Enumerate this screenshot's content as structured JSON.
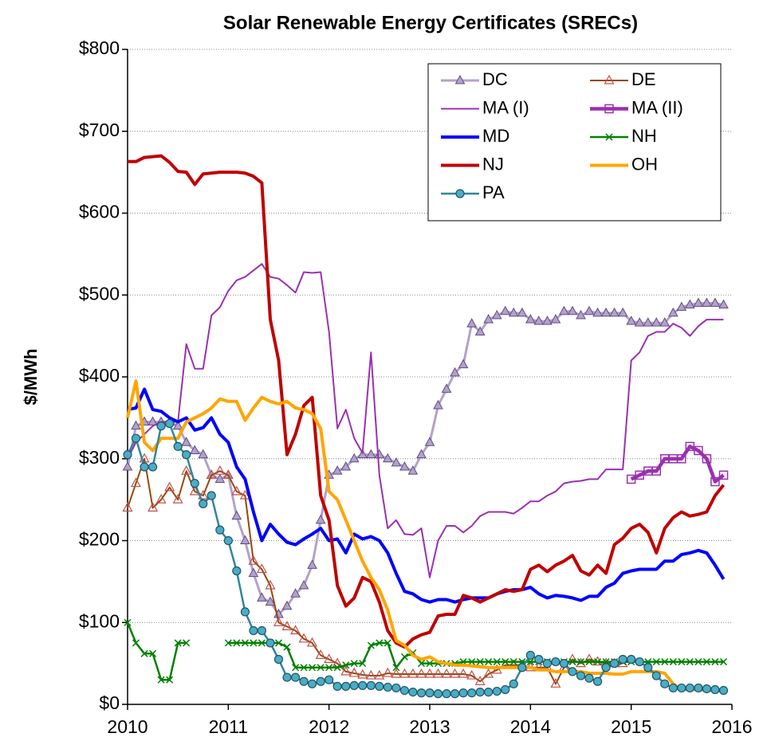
{
  "chart_data": {
    "type": "line",
    "title": "Solar Renewable Energy Certificates (SRECs)",
    "ylabel": "$/MWh",
    "x": [
      2010,
      2010.083,
      2010.167,
      2010.25,
      2010.333,
      2010.417,
      2010.5,
      2010.583,
      2010.667,
      2010.75,
      2010.833,
      2010.917,
      2011,
      2011.083,
      2011.167,
      2011.25,
      2011.333,
      2011.417,
      2011.5,
      2011.583,
      2011.667,
      2011.75,
      2011.833,
      2011.917,
      2012,
      2012.083,
      2012.167,
      2012.25,
      2012.333,
      2012.417,
      2012.5,
      2012.583,
      2012.667,
      2012.75,
      2012.833,
      2012.917,
      2013,
      2013.083,
      2013.167,
      2013.25,
      2013.333,
      2013.417,
      2013.5,
      2013.583,
      2013.667,
      2013.75,
      2013.833,
      2013.917,
      2014,
      2014.083,
      2014.167,
      2014.25,
      2014.333,
      2014.417,
      2014.5,
      2014.583,
      2014.667,
      2014.75,
      2014.833,
      2014.917,
      2015,
      2015.083,
      2015.167,
      2015.25,
      2015.333,
      2015.417,
      2015.5,
      2015.583,
      2015.667,
      2015.75,
      2015.833,
      2015.917
    ],
    "xlim": [
      2010,
      2016
    ],
    "xticks": [
      2010,
      2011,
      2012,
      2013,
      2014,
      2015,
      2016
    ],
    "ylim": [
      0,
      800
    ],
    "yticks": [
      {
        "value": 0,
        "label": "$0"
      },
      {
        "value": 100,
        "label": "$100"
      },
      {
        "value": 200,
        "label": "$200"
      },
      {
        "value": 300,
        "label": "$300"
      },
      {
        "value": 400,
        "label": "$400"
      },
      {
        "value": 500,
        "label": "$500"
      },
      {
        "value": 600,
        "label": "$600"
      },
      {
        "value": 700,
        "label": "$700"
      },
      {
        "value": 800,
        "label": "$800"
      }
    ],
    "grid": true,
    "legend": "upper right",
    "series": [
      {
        "name": "DC",
        "color": "#b3a2c7",
        "marker": "triangle",
        "marker_edge": "#5f4b8b",
        "width": 3,
        "values": [
          290,
          340,
          345,
          345,
          345,
          345,
          340,
          320,
          310,
          305,
          280,
          275,
          280,
          230,
          200,
          160,
          130,
          125,
          110,
          120,
          135,
          145,
          170,
          225,
          280,
          285,
          290,
          300,
          305,
          305,
          305,
          300,
          295,
          290,
          285,
          305,
          320,
          365,
          385,
          405,
          415,
          465,
          455,
          470,
          475,
          480,
          478,
          478,
          470,
          468,
          468,
          470,
          480,
          480,
          475,
          480,
          478,
          478,
          478,
          478,
          468,
          466,
          466,
          466,
          466,
          478,
          485,
          488,
          490,
          490,
          490,
          488
        ]
      },
      {
        "name": "DE",
        "color": "#984807",
        "marker": "open-triangle",
        "marker_edge": "#c0504d",
        "width": 2,
        "values": [
          240,
          270,
          300,
          240,
          250,
          265,
          250,
          285,
          260,
          255,
          280,
          285,
          280,
          260,
          255,
          175,
          165,
          145,
          100,
          95,
          90,
          80,
          75,
          60,
          55,
          50,
          40,
          38,
          36,
          35,
          35,
          38,
          37,
          37,
          37,
          37,
          37,
          37,
          37,
          37,
          37,
          35,
          28,
          37,
          42,
          48,
          48,
          48,
          45,
          45,
          45,
          25,
          45,
          55,
          50,
          55,
          52,
          50,
          50,
          50,
          null,
          null,
          null,
          null,
          null,
          null,
          null,
          null,
          null,
          null,
          null,
          null
        ]
      },
      {
        "name": "MA (I)",
        "color": "#9b30b0",
        "marker": "none",
        "width": 2,
        "values": [
          300,
          320,
          330,
          340,
          345,
          345,
          345,
          440,
          410,
          410,
          475,
          485,
          505,
          518,
          522,
          530,
          538,
          522,
          520,
          512,
          503,
          528,
          527,
          528,
          455,
          337,
          360,
          325,
          307,
          430,
          280,
          215,
          225,
          208,
          207,
          215,
          155,
          200,
          218,
          218,
          210,
          218,
          230,
          235,
          235,
          235,
          233,
          240,
          248,
          248,
          255,
          260,
          270,
          272,
          273,
          275,
          275,
          287,
          287,
          287,
          420,
          430,
          450,
          455,
          455,
          465,
          460,
          450,
          462,
          470,
          470,
          470
        ]
      },
      {
        "name": "MA (II)",
        "color": "#9b30b0",
        "marker": "open-square",
        "marker_edge": "#9b30b0",
        "width": 4.5,
        "values": [
          null,
          null,
          null,
          null,
          null,
          null,
          null,
          null,
          null,
          null,
          null,
          null,
          null,
          null,
          null,
          null,
          null,
          null,
          null,
          null,
          null,
          null,
          null,
          null,
          null,
          null,
          null,
          null,
          null,
          null,
          null,
          null,
          null,
          null,
          null,
          null,
          null,
          null,
          null,
          null,
          null,
          null,
          null,
          null,
          null,
          null,
          null,
          null,
          null,
          null,
          null,
          null,
          null,
          null,
          null,
          null,
          null,
          null,
          null,
          null,
          275,
          280,
          285,
          285,
          300,
          300,
          300,
          315,
          310,
          300,
          272,
          280
        ]
      },
      {
        "name": "MD",
        "color": "#0000ff",
        "marker": "none",
        "width": 4,
        "values": [
          360,
          362,
          385,
          360,
          358,
          350,
          345,
          350,
          335,
          338,
          350,
          330,
          320,
          290,
          275,
          235,
          200,
          220,
          208,
          198,
          195,
          202,
          208,
          215,
          200,
          202,
          185,
          208,
          202,
          205,
          200,
          185,
          160,
          138,
          135,
          128,
          125,
          128,
          128,
          125,
          128,
          130,
          130,
          130,
          135,
          138,
          140,
          140,
          143,
          135,
          130,
          133,
          132,
          130,
          127,
          132,
          132,
          143,
          148,
          160,
          163,
          165,
          165,
          165,
          175,
          175,
          183,
          185,
          188,
          185,
          170,
          153
        ]
      },
      {
        "name": "NH",
        "color": "#008000",
        "marker": "x",
        "marker_edge": "#008000",
        "width": 2.5,
        "values": [
          100,
          75,
          62,
          62,
          30,
          30,
          75,
          75,
          null,
          null,
          null,
          null,
          75,
          75,
          75,
          75,
          75,
          75,
          75,
          70,
          45,
          45,
          45,
          45,
          45,
          45,
          48,
          50,
          50,
          72,
          75,
          75,
          45,
          58,
          63,
          50,
          50,
          50,
          50,
          50,
          52,
          52,
          52,
          52,
          52,
          52,
          52,
          52,
          52,
          52,
          52,
          52,
          52,
          52,
          52,
          52,
          52,
          52,
          52,
          52,
          52,
          52,
          52,
          52,
          52,
          52,
          52,
          52,
          52,
          52,
          52,
          52
        ]
      },
      {
        "name": "NJ",
        "color": "#c00000",
        "marker": "none",
        "width": 4,
        "values": [
          663,
          663,
          668,
          669,
          670,
          662,
          651,
          650,
          635,
          648,
          649,
          650,
          650,
          650,
          649,
          645,
          637,
          470,
          420,
          305,
          330,
          365,
          375,
          255,
          225,
          145,
          120,
          130,
          155,
          150,
          125,
          90,
          75,
          70,
          80,
          85,
          88,
          108,
          110,
          110,
          133,
          130,
          125,
          130,
          135,
          140,
          138,
          140,
          165,
          170,
          162,
          170,
          175,
          182,
          163,
          158,
          170,
          160,
          195,
          203,
          215,
          220,
          210,
          185,
          215,
          228,
          235,
          230,
          232,
          235,
          255,
          268
        ]
      },
      {
        "name": "OH",
        "color": "#ffa500",
        "marker": "none",
        "width": 4,
        "values": [
          350,
          395,
          320,
          310,
          325,
          325,
          325,
          345,
          350,
          355,
          362,
          373,
          370,
          370,
          347,
          362,
          375,
          370,
          367,
          370,
          362,
          360,
          355,
          337,
          260,
          250,
          225,
          200,
          175,
          155,
          140,
          115,
          78,
          72,
          60,
          55,
          58,
          52,
          50,
          48,
          48,
          47,
          46,
          45,
          45,
          45,
          45,
          45,
          45,
          42,
          42,
          40,
          40,
          40,
          40,
          38,
          38,
          38,
          37,
          37,
          40,
          40,
          40,
          40,
          38,
          25,
          18,
          18,
          18,
          17,
          17,
          16
        ]
      },
      {
        "name": "PA",
        "color": "#31859c",
        "marker": "circle",
        "marker_edge": "#1f5566",
        "width": 2.5,
        "values": [
          305,
          325,
          290,
          290,
          340,
          343,
          315,
          305,
          270,
          245,
          255,
          213,
          200,
          163,
          113,
          90,
          90,
          75,
          55,
          33,
          33,
          28,
          25,
          28,
          30,
          22,
          22,
          23,
          23,
          23,
          22,
          21,
          20,
          17,
          15,
          14,
          14,
          13,
          13,
          13,
          14,
          14,
          15,
          15,
          16,
          18,
          25,
          45,
          60,
          55,
          50,
          52,
          50,
          40,
          35,
          32,
          28,
          45,
          50,
          55,
          55,
          52,
          45,
          35,
          25,
          20,
          20,
          20,
          20,
          19,
          18,
          17
        ]
      }
    ]
  }
}
